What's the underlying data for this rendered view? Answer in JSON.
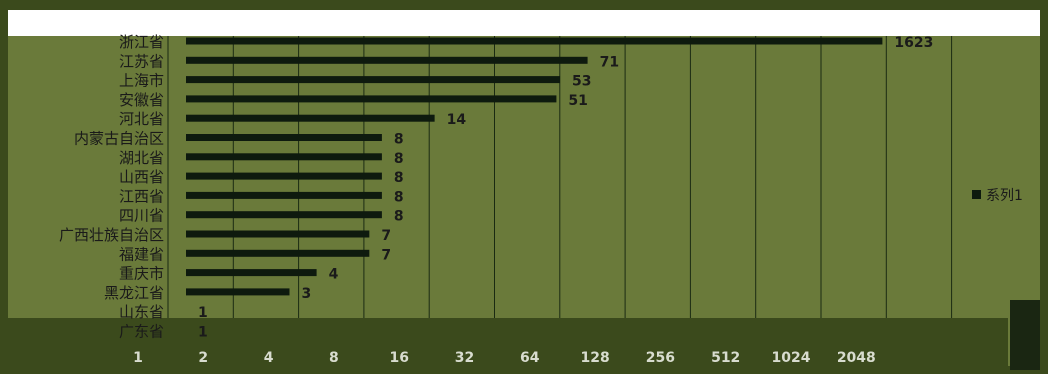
{
  "chart_data": {
    "type": "bar",
    "orientation": "horizontal",
    "x_scale": "log2",
    "xlim": [
      1,
      4096
    ],
    "x_ticks": [
      "1",
      "2",
      "4",
      "8",
      "16",
      "32",
      "64",
      "128",
      "256",
      "512",
      "1024",
      "2048"
    ],
    "grid": true,
    "legend_position": "right",
    "categories": [
      "浙江省",
      "江苏省",
      "上海市",
      "安徽省",
      "河北省",
      "内蒙古自治区",
      "湖北省",
      "山西省",
      "江西省",
      "四川省",
      "广西壮族自治区",
      "福建省",
      "重庆市",
      "黑龙江省",
      "山东省",
      "广东省"
    ],
    "series": [
      {
        "name": "系列1",
        "values": [
          1623,
          71,
          53,
          51,
          14,
          8,
          8,
          8,
          8,
          8,
          7,
          7,
          4,
          3,
          1,
          1
        ],
        "data_labels": [
          "1623",
          "71",
          "53",
          "51",
          "14",
          "8",
          "8",
          "8",
          "8",
          "8",
          "7",
          "7",
          "4",
          "3",
          "1",
          "1"
        ]
      }
    ],
    "colors": {
      "plot_background": "#6a7a3a",
      "outer_background": "#3b4a1c",
      "bar": "#0e1a0e",
      "grid": "#1a2a12",
      "label_text": "#1a1a1a",
      "tick_text": "#d8dccf"
    }
  },
  "legend": {
    "label": "系列1",
    "marker_color": "#0e1a0e"
  }
}
